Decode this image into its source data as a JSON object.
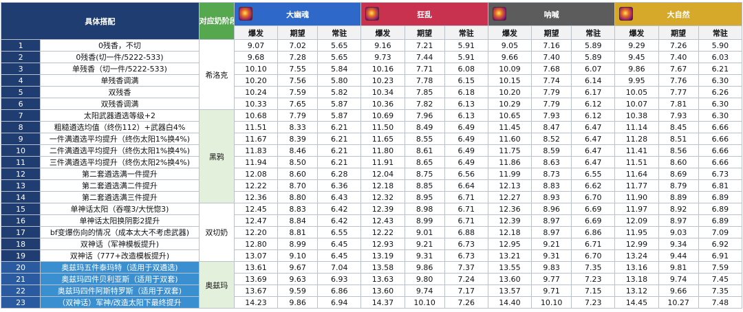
{
  "header": {
    "title": "具体搭配",
    "nai_label": "对应奶阶段",
    "skills": [
      {
        "name": "大幽魂",
        "color": "#2e68c9",
        "icon": "dayouhun-icon"
      },
      {
        "name": "狂乱",
        "color": "#c9324f",
        "icon": "kuangluan-icon"
      },
      {
        "name": "呐喊",
        "color": "#5c5c5c",
        "icon": "nahan-icon"
      },
      {
        "name": "大自然",
        "color": "#d6a92a",
        "icon": "daziran-icon"
      }
    ],
    "sub_labels": [
      "爆发",
      "期望",
      "常驻"
    ]
  },
  "groups": [
    {
      "label": "希洛克",
      "start": 0,
      "span": 6
    },
    {
      "label": "黑鸦",
      "start": 6,
      "span": 8
    },
    {
      "label": "双切奶",
      "start": 14,
      "span": 5
    },
    {
      "label": "奥兹玛",
      "start": 19,
      "span": 4
    }
  ],
  "rows": [
    {
      "n": "1",
      "desc": "0残香，不切",
      "v": [
        "9.07",
        "7.02",
        "5.65",
        "9.16",
        "7.21",
        "5.91",
        "9.05",
        "7.16",
        "5.89",
        "9.29",
        "7.26",
        "5.90"
      ]
    },
    {
      "n": "2",
      "desc": "0残香(切一件/5222-533)",
      "v": [
        "9.68",
        "7.28",
        "5.65",
        "9.73",
        "7.44",
        "5.91",
        "9.66",
        "7.40",
        "5.89",
        "9.45",
        "7.40",
        "6.03"
      ]
    },
    {
      "n": "3",
      "desc": "单残香（切一件/5222-533)",
      "v": [
        "10.10",
        "7.55",
        "5.84",
        "10.16",
        "7.71",
        "6.08",
        "10.09",
        "7.68",
        "6.07",
        "9.86",
        "7.67",
        "6.21"
      ]
    },
    {
      "n": "4",
      "desc": "单残香调满",
      "v": [
        "10.20",
        "7.56",
        "5.80",
        "10.23",
        "7.78",
        "6.15",
        "10.15",
        "7.74",
        "6.14",
        "9.95",
        "7.76",
        "6.30"
      ]
    },
    {
      "n": "5",
      "desc": "双残香",
      "v": [
        "10.24",
        "7.59",
        "5.82",
        "10.34",
        "7.85",
        "6.18",
        "10.20",
        "7.79",
        "6.17",
        "10.05",
        "7.77",
        "6.26"
      ]
    },
    {
      "n": "6",
      "desc": "双残香调满",
      "v": [
        "10.33",
        "7.65",
        "5.87",
        "10.36",
        "7.82",
        "6.13",
        "10.29",
        "7.79",
        "6.12",
        "10.07",
        "7.81",
        "6.30"
      ]
    },
    {
      "n": "7",
      "desc": "太阳武器遴选等级+2",
      "v": [
        "10.68",
        "7.79",
        "5.87",
        "10.69",
        "7.96",
        "6.13",
        "10.65",
        "7.93",
        "6.12",
        "10.38",
        "7.93",
        "6.30"
      ]
    },
    {
      "n": "8",
      "desc": "粗糙遴选均值（终伤112）+武器白4%",
      "v": [
        "11.51",
        "8.33",
        "6.21",
        "11.50",
        "8.49",
        "6.49",
        "11.45",
        "8.47",
        "6.47",
        "11.14",
        "8.45",
        "6.66"
      ]
    },
    {
      "n": "9",
      "desc": "一件满遴选平均提升（终伤太阳1%换4%)",
      "v": [
        "11.67",
        "8.39",
        "6.21",
        "11.65",
        "8.55",
        "6.49",
        "11.60",
        "8.52",
        "6.47",
        "11.28",
        "8.51",
        "6.66"
      ]
    },
    {
      "n": "10",
      "desc": "二件满遴选平均提升（终伤太阳1%换4%)",
      "v": [
        "11.83",
        "8.46",
        "6.21",
        "11.80",
        "8.61",
        "6.49",
        "11.75",
        "8.59",
        "6.47",
        "11.41",
        "8.56",
        "6.66"
      ]
    },
    {
      "n": "11",
      "desc": "三件满遴选平均提升（终伤太阳2%换4%)",
      "v": [
        "11.94",
        "8.50",
        "6.21",
        "11.91",
        "8.65",
        "6.49",
        "11.86",
        "8.63",
        "6.47",
        "11.51",
        "8.60",
        "6.66"
      ]
    },
    {
      "n": "12",
      "desc": "第二套遴选满一件提升",
      "v": [
        "12.08",
        "8.60",
        "6.28",
        "12.04",
        "8.75",
        "6.56",
        "11.99",
        "8.73",
        "6.55",
        "11.64",
        "8.69",
        "6.73"
      ]
    },
    {
      "n": "13",
      "desc": "第二套遴选满二件提升",
      "v": [
        "12.22",
        "8.70",
        "6.36",
        "12.18",
        "8.85",
        "6.64",
        "12.13",
        "8.83",
        "6.62",
        "11.77",
        "8.79",
        "6.81"
      ]
    },
    {
      "n": "14",
      "desc": "第二套遴选满三件提升",
      "v": [
        "12.36",
        "8.80",
        "6.43",
        "12.32",
        "8.95",
        "6.71",
        "12.27",
        "8.93",
        "6.70",
        "11.90",
        "8.89",
        "6.89"
      ]
    },
    {
      "n": "15",
      "desc": "单神话太阳（吞噬3/大恍惚3)",
      "v": [
        "12.45",
        "8.83",
        "6.42",
        "12.39",
        "8.98",
        "6.71",
        "12.36",
        "8.96",
        "6.69",
        "11.97",
        "8.92",
        "6.89"
      ]
    },
    {
      "n": "16",
      "desc": "单神话太阳换阴影2提升",
      "v": [
        "12.47",
        "8.84",
        "6.42",
        "12.43",
        "8.99",
        "6.71",
        "12.39",
        "8.97",
        "6.69",
        "12.09",
        "8.97",
        "6.89"
      ]
    },
    {
      "n": "17",
      "desc": "bf变爆伤向的情况（成本太大不考虑武器)",
      "v": [
        "12.20",
        "8.81",
        "6.55",
        "12.22",
        "9.01",
        "6.88",
        "12.18",
        "8.97",
        "6.86",
        "11.95",
        "9.03",
        "7.09"
      ]
    },
    {
      "n": "18",
      "desc": "双神话（军神模板提升)",
      "v": [
        "12.80",
        "8.99",
        "6.45",
        "12.93",
        "9.21",
        "6.73",
        "12.95",
        "9.21",
        "6.71",
        "12.99",
        "9.34",
        "6.92"
      ]
    },
    {
      "n": "19",
      "desc": "双神话（777+改造模板提升)",
      "v": [
        "13.07",
        "9.10",
        "6.45",
        "13.19",
        "9.31",
        "6.73",
        "13.21",
        "9.31",
        "6.70",
        "13.24",
        "9.44",
        "6.91"
      ]
    },
    {
      "n": "20",
      "desc": "奥兹玛五件泰玛特（适用于双遴选)",
      "v": [
        "13.61",
        "9.67",
        "7.04",
        "13.58",
        "9.86",
        "7.37",
        "13.55",
        "9.83",
        "7.35",
        "13.16",
        "9.81",
        "7.59"
      ]
    },
    {
      "n": "21",
      "desc": "奥兹玛四件贝利亚斯（适用于双套)",
      "v": [
        "13.69",
        "9.63",
        "6.93",
        "13.63",
        "9.80",
        "7.24",
        "13.60",
        "9.77",
        "7.23",
        "13.18",
        "9.74",
        "7.45"
      ]
    },
    {
      "n": "22",
      "desc": "奥兹玛四件阿斯特罗斯（适用于双套)",
      "v": [
        "13.67",
        "9.59",
        "6.86",
        "13.60",
        "9.74",
        "7.17",
        "13.57",
        "9.71",
        "7.15",
        "13.12",
        "9.66",
        "7.35"
      ]
    },
    {
      "n": "23",
      "desc": "（双神话）军神/改造太阳下最终提升",
      "v": [
        "14.23",
        "9.86",
        "6.94",
        "14.37",
        "10.10",
        "7.26",
        "14.40",
        "10.10",
        "7.23",
        "14.45",
        "10.27",
        "7.48"
      ]
    }
  ]
}
